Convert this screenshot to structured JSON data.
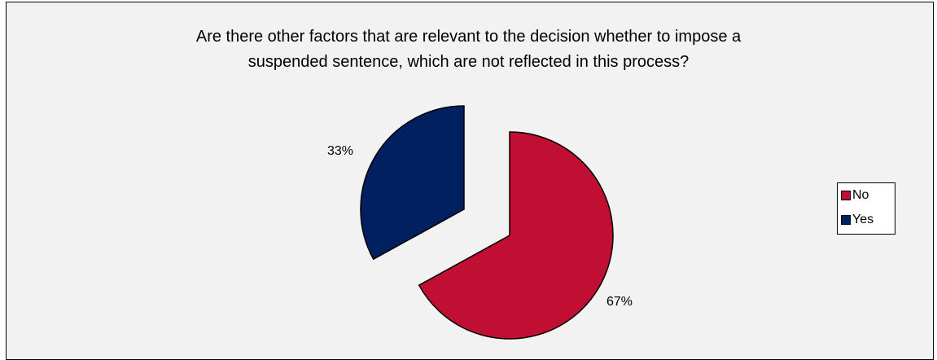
{
  "chart_data": {
    "type": "pie",
    "title_lines": [
      "Are there other factors that are relevant to the decision whether to impose a",
      "suspended sentence, which are not reflected in this process?"
    ],
    "categories": [
      "No",
      "Yes"
    ],
    "values": [
      67,
      33
    ],
    "data_labels": [
      "67%",
      "33%"
    ],
    "colors": [
      "#c00f33",
      "#002060"
    ],
    "exploded": true,
    "legend_position": "right"
  }
}
